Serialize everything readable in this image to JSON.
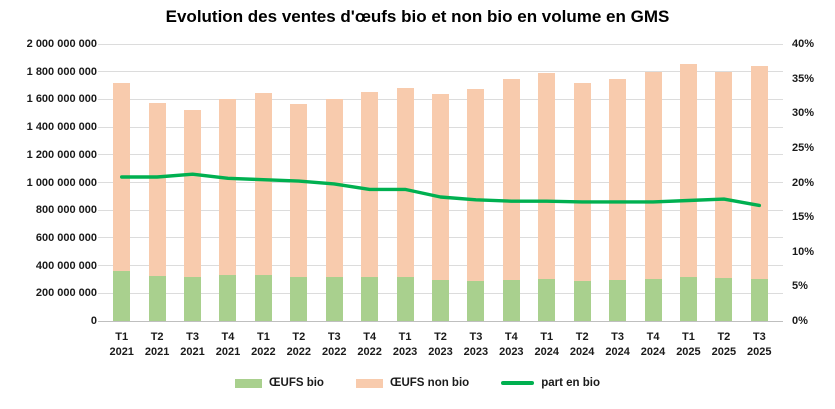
{
  "title": "Evolution des ventes d'œufs bio et non bio en volume en GMS",
  "colors": {
    "bio": "#A9D08E",
    "non_bio": "#F8CBAD",
    "line": "#00B050",
    "gridline": "#DCDCDC",
    "axis_line": "#BFBFBF",
    "text": "#1A1A1A",
    "title": "#000000",
    "background": "#FFFFFF"
  },
  "chart_data": {
    "type": "bar",
    "subtype": "stacked-bars-with-percentage-line",
    "title": "Evolution des ventes d'œufs bio et non bio en volume en GMS",
    "grid": true,
    "legend_position": "bottom",
    "categories": [
      "T1 2021",
      "T2 2021",
      "T3 2021",
      "T4 2021",
      "T1 2022",
      "T2 2022",
      "T3 2022",
      "T4 2022",
      "T1 2023",
      "T2 2023",
      "T3 2023",
      "T4 2023",
      "T1 2024",
      "T2 2024",
      "T3 2024",
      "T4 2024",
      "T1 2025",
      "T2 2025",
      "T3 2025"
    ],
    "series": [
      {
        "name": "ŒUFS bio",
        "kind": "bar",
        "stacked": true,
        "axis": "left",
        "color": "#A9D08E",
        "values": [
          360000000,
          325000000,
          320000000,
          330000000,
          335000000,
          320000000,
          315000000,
          315000000,
          320000000,
          295000000,
          290000000,
          295000000,
          300000000,
          290000000,
          295000000,
          300000000,
          315000000,
          310000000,
          305000000
        ]
      },
      {
        "name": "ŒUFS non bio",
        "kind": "bar",
        "stacked": true,
        "axis": "left",
        "color": "#F8CBAD",
        "values": [
          1360000000,
          1250000000,
          1205000000,
          1275000000,
          1310000000,
          1250000000,
          1285000000,
          1335000000,
          1365000000,
          1345000000,
          1385000000,
          1455000000,
          1490000000,
          1425000000,
          1450000000,
          1500000000,
          1540000000,
          1490000000,
          1535000000
        ]
      },
      {
        "name": "part en bio",
        "kind": "line",
        "axis": "right",
        "unit": "percent",
        "color": "#00B050",
        "values": [
          20.8,
          20.8,
          21.2,
          20.6,
          20.4,
          20.2,
          19.8,
          19.0,
          19.0,
          17.9,
          17.5,
          17.3,
          17.3,
          17.2,
          17.2,
          17.2,
          17.4,
          17.6,
          16.7
        ]
      }
    ],
    "left_axis": {
      "min": 0,
      "max": 2000000000,
      "step": 200000000,
      "tick_labels": [
        "0",
        "200 000 000",
        "400 000 000",
        "600 000 000",
        "800 000 000",
        "1 000 000 000",
        "1 200 000 000",
        "1 400 000 000",
        "1 600 000 000",
        "1 800 000 000",
        "2 000 000 000"
      ]
    },
    "right_axis": {
      "min": 0,
      "max": 40,
      "step": 5,
      "unit": "percent",
      "tick_labels": [
        "0%",
        "5%",
        "10%",
        "15%",
        "20%",
        "25%",
        "30%",
        "35%",
        "40%"
      ]
    }
  },
  "legend": {
    "items": [
      {
        "label": "ŒUFS bio",
        "swatch": "bar",
        "color": "#A9D08E"
      },
      {
        "label": "ŒUFS non bio",
        "swatch": "bar",
        "color": "#F8CBAD"
      },
      {
        "label": "part en bio",
        "swatch": "line",
        "color": "#00B050"
      }
    ]
  }
}
